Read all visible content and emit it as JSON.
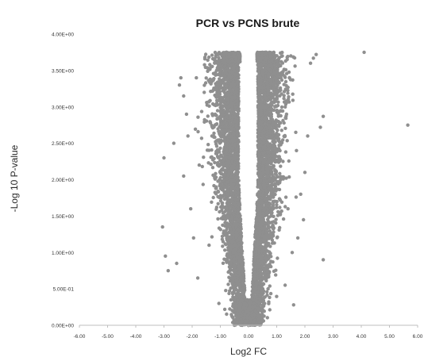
{
  "chart_data": {
    "type": "scatter",
    "title": "PCR vs PCNS brute",
    "xlabel": "Log2 FC",
    "ylabel": "-Log 10 P-value",
    "xlim": [
      -6,
      6
    ],
    "ylim": [
      0,
      4
    ],
    "x_ticks": [
      "-6.00",
      "-5.00",
      "-4.00",
      "-3.00",
      "-2.00",
      "-1.00",
      "0.00",
      "1.00",
      "2.00",
      "3.00",
      "4.00",
      "5.00",
      "6.00"
    ],
    "y_ticks": [
      "0.00E+00",
      "5.00E-01",
      "1.00E+00",
      "1.50E+00",
      "2.00E+00",
      "2.50E+00",
      "3.00E+00",
      "3.50E+00",
      "4.00E+00"
    ],
    "grid": false,
    "legend": "none",
    "marker_color": "#8f8f8f",
    "series": [
      {
        "points": [
          [
            4.1,
            3.75
          ],
          [
            5.65,
            2.75
          ],
          [
            2.4,
            3.72
          ],
          [
            2.3,
            3.67
          ],
          [
            2.65,
            2.87
          ],
          [
            2.55,
            2.72
          ],
          [
            2.65,
            0.9
          ],
          [
            2.2,
            3.6
          ],
          [
            2.1,
            2.6
          ],
          [
            2.0,
            2.1
          ],
          [
            1.85,
            1.8
          ],
          [
            1.95,
            1.45
          ],
          [
            1.75,
            1.2
          ],
          [
            1.7,
            2.4
          ],
          [
            1.6,
            0.28
          ],
          [
            1.55,
            1.0
          ],
          [
            -3.0,
            2.3
          ],
          [
            -3.05,
            1.35
          ],
          [
            -2.95,
            0.95
          ],
          [
            -2.85,
            0.75
          ],
          [
            -2.65,
            2.5
          ],
          [
            -2.55,
            0.85
          ],
          [
            -2.45,
            3.3
          ],
          [
            -2.4,
            3.4
          ],
          [
            -2.3,
            3.15
          ],
          [
            -2.3,
            2.05
          ],
          [
            -2.2,
            2.9
          ],
          [
            -2.15,
            2.6
          ],
          [
            -2.05,
            1.6
          ],
          [
            -1.95,
            1.2
          ],
          [
            -1.85,
            3.4
          ],
          [
            -1.8,
            0.65
          ],
          [
            -1.75,
            2.2
          ],
          [
            -1.05,
            0.3
          ],
          [
            -1.15,
            1.9
          ],
          [
            -1.2,
            3.6
          ],
          [
            1.2,
            3.7
          ],
          [
            1.35,
            2.9
          ],
          [
            1.3,
            0.55
          ],
          [
            1.4,
            1.6
          ],
          [
            -1.3,
            2.6
          ],
          [
            -1.4,
            1.1
          ]
        ]
      }
    ]
  }
}
